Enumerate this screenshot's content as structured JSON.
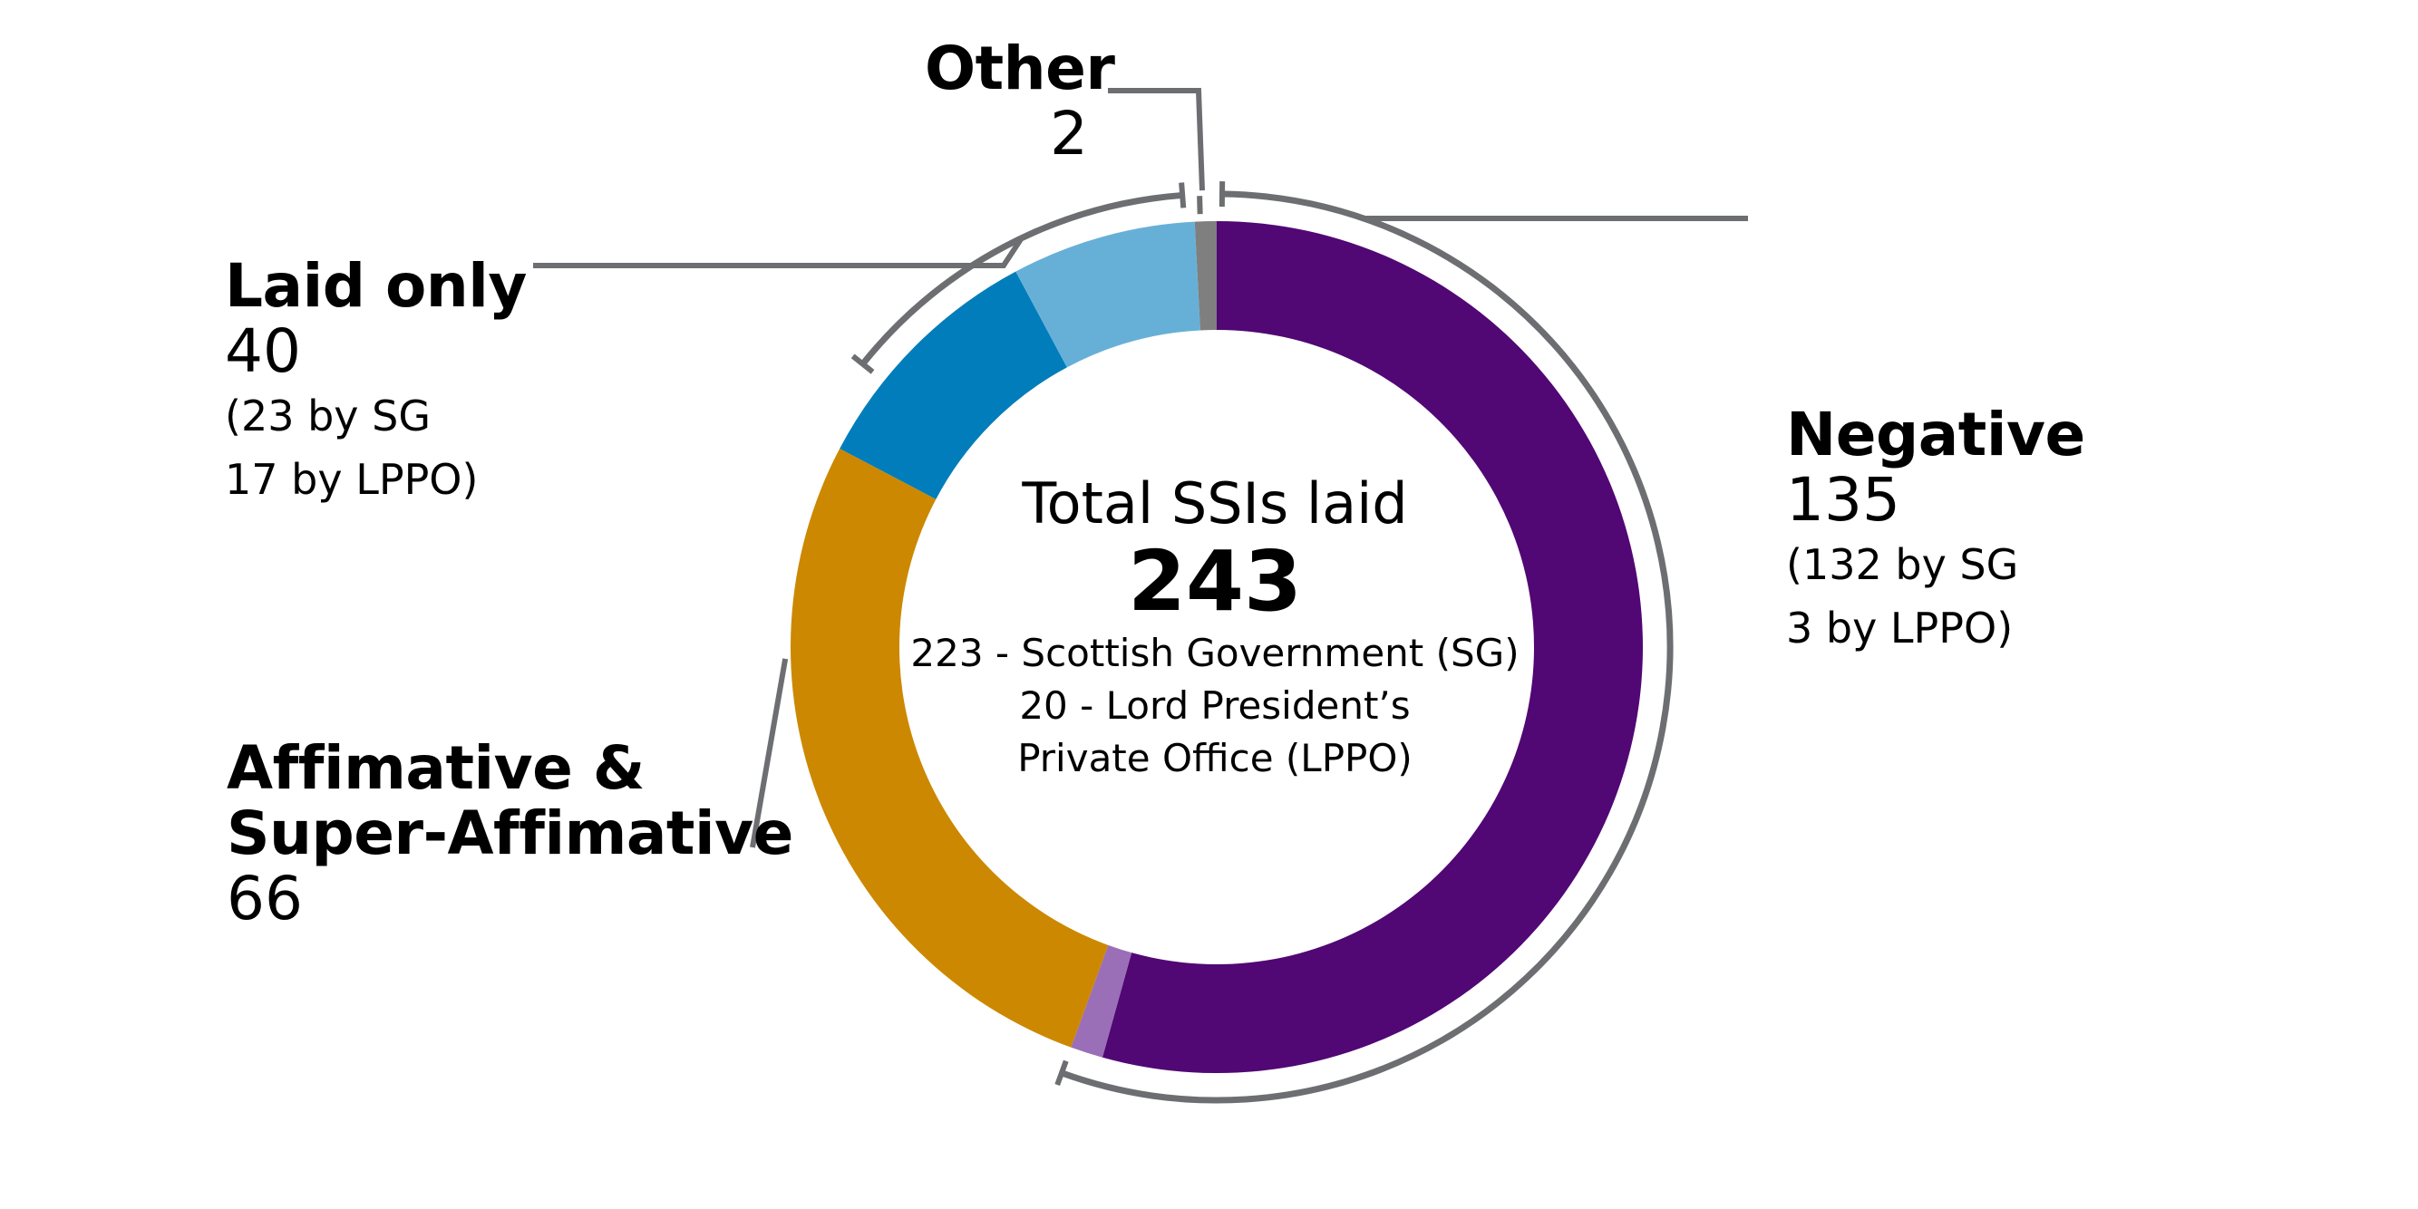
{
  "chart_data": {
    "type": "pie",
    "variant": "donut",
    "center": {
      "title": "Total SSIs laid",
      "total": "243",
      "lines": [
        "223 - Scottish Government (SG)",
        "20 - Lord President’s",
        "Private Office (LPPO)"
      ]
    },
    "slices": [
      {
        "id": "negative-sg",
        "group": "negative",
        "value": 132,
        "color": "#510774"
      },
      {
        "id": "negative-lppo",
        "group": "negative",
        "value": 3,
        "color": "#9B6EB8"
      },
      {
        "id": "affirmative",
        "group": "affirmative",
        "value": 66,
        "color": "#CC8800"
      },
      {
        "id": "laid-sg",
        "group": "laid-only",
        "value": 23,
        "color": "#007DBA"
      },
      {
        "id": "laid-lppo",
        "group": "laid-only",
        "value": 17,
        "color": "#66B0D8"
      },
      {
        "id": "other",
        "group": "other",
        "value": 2,
        "color": "#7F7F7F"
      }
    ],
    "labels": [
      {
        "group": "other",
        "title": "Other",
        "value": "2",
        "notes": []
      },
      {
        "group": "laid-only",
        "title": "Laid only",
        "value": "40",
        "notes": [
          "(23 by SG",
          "17 by LPPO)"
        ]
      },
      {
        "group": "negative",
        "title": "Negative",
        "value": "135",
        "notes": [
          "(132 by SG",
          "3 by LPPO)"
        ]
      },
      {
        "group": "affirmative",
        "title": "Affimative &\nSuper-Affimative",
        "value": "66",
        "notes": []
      }
    ],
    "bracket_color": "#6D6E71"
  }
}
